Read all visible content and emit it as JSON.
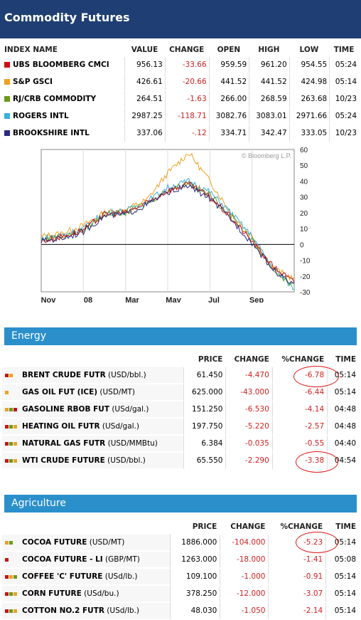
{
  "header": {
    "title": "Commodity Futures"
  },
  "indexes": {
    "columns": [
      "INDEX NAME",
      "VALUE",
      "CHANGE",
      "OPEN",
      "HIGH",
      "LOW",
      "TIME"
    ],
    "rows": [
      {
        "color": "#cc1111",
        "name": "UBS BLOOMBERG CMCI",
        "value": "956.13",
        "change": "-33.66",
        "open": "959.59",
        "high": "961.20",
        "low": "954.55",
        "time": "05:24"
      },
      {
        "color": "#f0a020",
        "name": "S&P GSCI",
        "value": "426.61",
        "change": "-20.66",
        "open": "441.52",
        "high": "441.52",
        "low": "424.98",
        "time": "05:14"
      },
      {
        "color": "#6a9a1a",
        "name": "RJ/CRB COMMODITY",
        "value": "264.51",
        "change": "-1.63",
        "open": "266.00",
        "high": "268.59",
        "low": "263.68",
        "time": "10/23"
      },
      {
        "color": "#3ab0e0",
        "name": "ROGERS INTL",
        "value": "2987.25",
        "change": "-118.71",
        "open": "3082.76",
        "high": "3083.01",
        "low": "2971.66",
        "time": "05:24"
      },
      {
        "color": "#2a2a80",
        "name": "BROOKSHIRE INTL",
        "value": "337.06",
        "change": "-.12",
        "open": "334.71",
        "high": "342.47",
        "low": "333.05",
        "time": "10/23"
      }
    ]
  },
  "chart_data": {
    "type": "line",
    "watermark": "© Bloomberg L.P.",
    "x_ticks": [
      "Nov",
      "08",
      "Mar",
      "May",
      "Jul",
      "Sep"
    ],
    "y_ticks": [
      60,
      50,
      40,
      30,
      20,
      10,
      0,
      -10,
      -20,
      -30
    ],
    "ylim": [
      -30,
      60
    ],
    "x": [
      0,
      1,
      2,
      3,
      4,
      5,
      6,
      7,
      8,
      9,
      10,
      11,
      12
    ],
    "x_labels_hint": "months from Nov 2007 to Oct 2008",
    "series": [
      {
        "color": "#f0a020",
        "values": [
          5,
          7,
          12,
          20,
          22,
          28,
          45,
          58,
          40,
          20,
          5,
          -15,
          -22
        ]
      },
      {
        "color": "#3ab0e0",
        "values": [
          4,
          6,
          10,
          20,
          21,
          27,
          36,
          40,
          33,
          20,
          5,
          -15,
          -28
        ]
      },
      {
        "color": "#6a9a1a",
        "values": [
          3,
          5,
          9,
          19,
          20,
          26,
          34,
          39,
          31,
          18,
          3,
          -16,
          -27
        ]
      },
      {
        "color": "#cc1111",
        "values": [
          2,
          5,
          9,
          19,
          20,
          26,
          34,
          38,
          30,
          17,
          2,
          -14,
          -24
        ]
      },
      {
        "color": "#2a2a80",
        "values": [
          2,
          4,
          8,
          18,
          19,
          25,
          33,
          37,
          29,
          16,
          1,
          -16,
          -26
        ]
      }
    ]
  },
  "energy": {
    "title": "Energy",
    "columns": [
      "PRICE",
      "CHANGE",
      "%CHANGE",
      "TIME"
    ],
    "rows": [
      {
        "icons": [
          "#cc1111",
          "#f0a020"
        ],
        "name": "BRENT CRUDE FUTR",
        "unit": "(USD/bbl.)",
        "price": "61.450",
        "change": "-4.470",
        "pct": "-6.78",
        "time": "05:14"
      },
      {
        "icons": [
          "#f0a020"
        ],
        "name": "GAS OIL FUT (ICE)",
        "unit": "(USD/MT)",
        "price": "625.000",
        "change": "-43.000",
        "pct": "-6.44",
        "time": "05:14"
      },
      {
        "icons": [
          "#f0a020",
          "#6a9a1a",
          "#cc1111"
        ],
        "name": "GASOLINE RBOB FUT",
        "unit": "(USd/gal.)",
        "price": "151.250",
        "change": "-6.530",
        "pct": "-4.14",
        "time": "04:48"
      },
      {
        "icons": [
          "#cc1111",
          "#6a9a1a",
          "#f0a020"
        ],
        "name": "HEATING OIL FUTR",
        "unit": "(USd/gal.)",
        "price": "197.750",
        "change": "-5.220",
        "pct": "-2.57",
        "time": "04:48"
      },
      {
        "icons": [
          "#cc1111",
          "#6a9a1a",
          "#f0a020"
        ],
        "name": "NATURAL GAS FUTR",
        "unit": "(USD/MMBtu)",
        "price": "6.384",
        "change": "-0.035",
        "pct": "-0.55",
        "time": "04:40"
      },
      {
        "icons": [
          "#cc1111",
          "#6a9a1a",
          "#f0a020"
        ],
        "name": "WTI CRUDE FUTURE",
        "unit": "(USD/bbl.)",
        "price": "65.550",
        "change": "-2.290",
        "pct": "-3.38",
        "time": "04:54"
      }
    ]
  },
  "agriculture": {
    "title": "Agriculture",
    "columns": [
      "PRICE",
      "CHANGE",
      "%CHANGE",
      "TIME"
    ],
    "rows": [
      {
        "icons": [
          "#f0a020",
          "#6a9a1a"
        ],
        "name": "COCOA FUTURE",
        "unit": "(USD/MT)",
        "price": "1886.000",
        "change": "-104.000",
        "pct": "-5.23",
        "time": "05:14"
      },
      {
        "icons": [
          "#cc1111"
        ],
        "name": "COCOA FUTURE - LI",
        "unit": "(GBP/MT)",
        "price": "1263.000",
        "change": "-18.000",
        "pct": "-1.41",
        "time": "05:08"
      },
      {
        "icons": [
          "#cc1111",
          "#f0a020",
          "#6a9a1a"
        ],
        "name": "COFFEE 'C' FUTURE",
        "unit": "(USd/lb.)",
        "price": "109.100",
        "change": "-1.000",
        "pct": "-0.91",
        "time": "05:14"
      },
      {
        "icons": [
          "#cc1111",
          "#6a9a1a",
          "#f0a020"
        ],
        "name": "CORN FUTURE",
        "unit": "(USd/bu.)",
        "price": "378.250",
        "change": "-12.000",
        "pct": "-3.07",
        "time": "05:14"
      },
      {
        "icons": [
          "#cc1111",
          "#6a9a1a",
          "#f0a020"
        ],
        "name": "COTTON NO.2 FUTR",
        "unit": "(USd/lb.)",
        "price": "48.030",
        "change": "-1.050",
        "pct": "-2.14",
        "time": "05:14"
      }
    ]
  }
}
